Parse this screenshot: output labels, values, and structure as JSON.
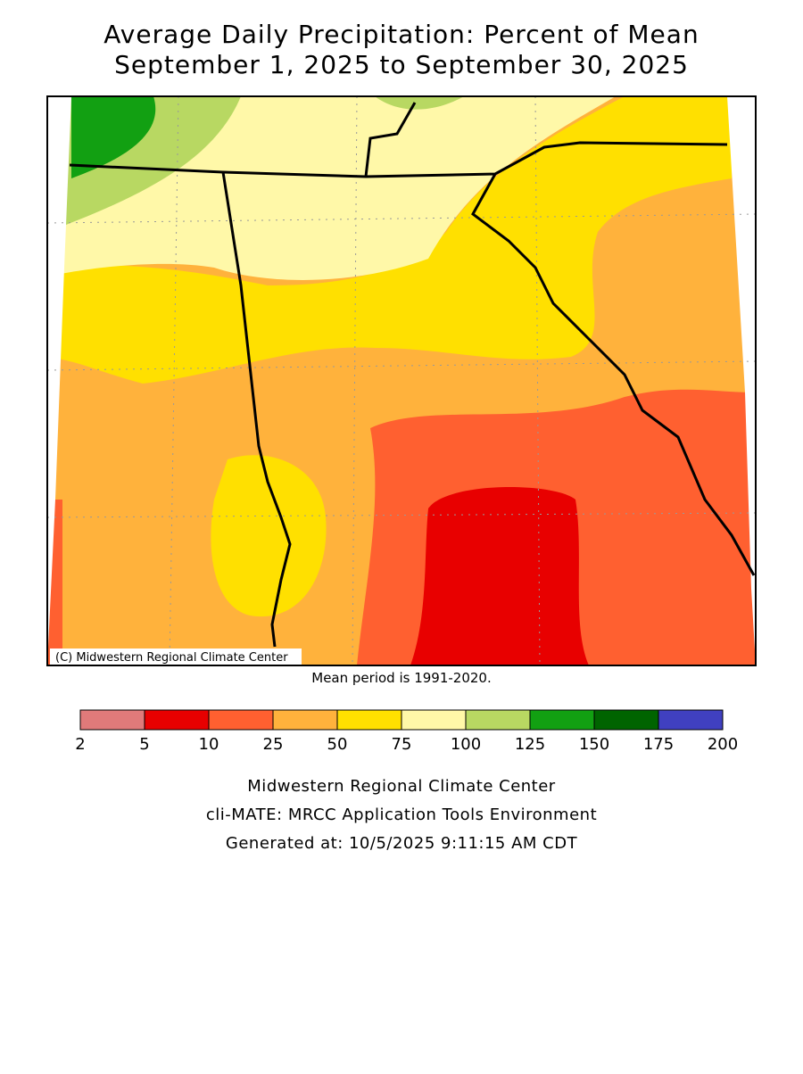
{
  "header": {
    "title": "Average Daily Precipitation: Percent of Mean",
    "subtitle": "September 1, 2025 to September 30, 2025"
  },
  "map": {
    "credit": "(C) Midwestern Regional Climate Center",
    "note": "Mean period is 1991-2020."
  },
  "legend": {
    "bins": [
      2,
      5,
      10,
      25,
      50,
      75,
      100,
      125,
      150,
      175,
      200
    ],
    "colors": [
      "#e07a7a",
      "#e80000",
      "#ff6030",
      "#ffb23c",
      "#ffe000",
      "#fff8a8",
      "#b8d862",
      "#12a012",
      "#006400",
      "#4040c0"
    ]
  },
  "footer": {
    "lines": [
      "Midwestern Regional Climate Center",
      "cli-MATE: MRCC Application Tools Environment",
      "Generated at: 10/5/2025 9:11:15 AM CDT"
    ]
  }
}
